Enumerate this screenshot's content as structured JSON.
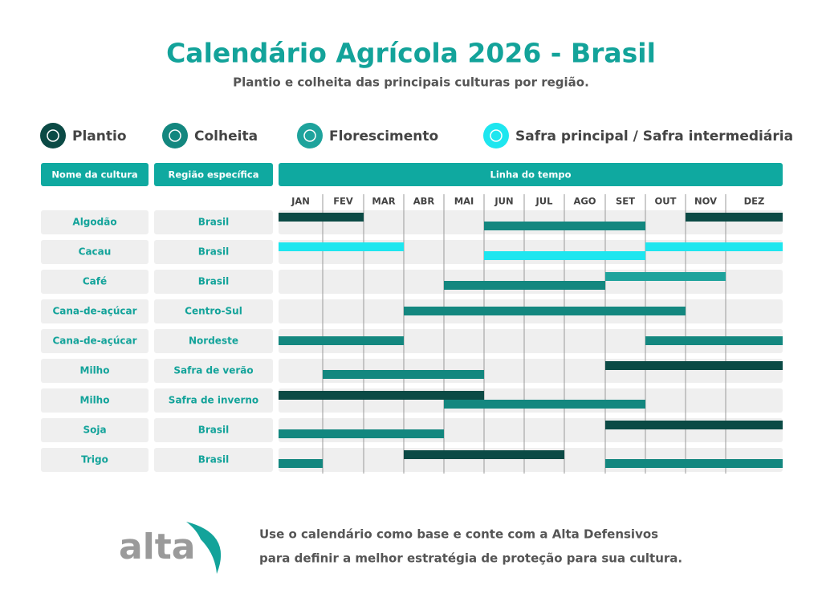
{
  "header": {
    "title": "Calendário Agrícola 2026 - Brasil",
    "subtitle": "Plantio e colheita das principais culturas por região."
  },
  "legend": [
    {
      "label": "Plantio",
      "color": "#0b4a45"
    },
    {
      "label": "Colheita",
      "color": "#13877f"
    },
    {
      "label": "Florescimento",
      "color": "#1ea39c"
    },
    {
      "label": "Safra principal / Safra intermediária",
      "color": "#1ee6ef"
    }
  ],
  "table": {
    "columns": [
      "Nome da cultura",
      "Região específica",
      "Linha do tempo"
    ],
    "months": [
      "JAN",
      "FEV",
      "MAR",
      "ABR",
      "MAI",
      "JUN",
      "JUL",
      "AGO",
      "SET",
      "OUT",
      "NOV",
      "DEZ"
    ],
    "rows": [
      {
        "crop": "Algodão",
        "region": "Brasil",
        "bars": [
          {
            "legend": 0,
            "start": 0,
            "end": 2
          },
          {
            "legend": 1,
            "start": 5,
            "end": 9
          },
          {
            "legend": 0,
            "start": 10,
            "end": 12
          }
        ]
      },
      {
        "crop": "Cacau",
        "region": "Brasil",
        "bars": [
          {
            "legend": 3,
            "start": 0,
            "end": 3
          },
          {
            "legend": 3,
            "start": 5,
            "end": 9
          },
          {
            "legend": 3,
            "start": 9,
            "end": 12
          }
        ]
      },
      {
        "crop": "Café",
        "region": "Brasil",
        "bars": [
          {
            "legend": 1,
            "start": 4,
            "end": 8
          },
          {
            "legend": 2,
            "start": 8,
            "end": 11
          }
        ]
      },
      {
        "crop": "Cana-de-açúcar",
        "region": "Centro-Sul",
        "bars": [
          {
            "legend": 1,
            "start": 3,
            "end": 10
          }
        ]
      },
      {
        "crop": "Cana-de-açúcar",
        "region": "Nordeste",
        "bars": [
          {
            "legend": 1,
            "start": 0,
            "end": 3
          },
          {
            "legend": 1,
            "start": 9,
            "end": 12
          }
        ]
      },
      {
        "crop": "Milho",
        "region": "Safra de verão",
        "bars": [
          {
            "legend": 1,
            "start": 1,
            "end": 5
          },
          {
            "legend": 0,
            "start": 8,
            "end": 12
          }
        ]
      },
      {
        "crop": "Milho",
        "region": "Safra de inverno",
        "bars": [
          {
            "legend": 0,
            "start": 0,
            "end": 5
          },
          {
            "legend": 1,
            "start": 4,
            "end": 9
          }
        ]
      },
      {
        "crop": "Soja",
        "region": "Brasil",
        "bars": [
          {
            "legend": 0,
            "start": 8,
            "end": 12
          },
          {
            "legend": 1,
            "start": 0,
            "end": 4
          }
        ]
      },
      {
        "crop": "Trigo",
        "region": "Brasil",
        "bars": [
          {
            "legend": 1,
            "start": 0,
            "end": 1
          },
          {
            "legend": 0,
            "start": 3,
            "end": 7
          },
          {
            "legend": 1,
            "start": 8,
            "end": 12
          }
        ]
      }
    ]
  },
  "footer": {
    "logo": "alta",
    "lines": [
      "Use o calendário como base e conte com a Alta Defensivos",
      "para definir a melhor estratégia de proteção para sua cultura."
    ]
  }
}
